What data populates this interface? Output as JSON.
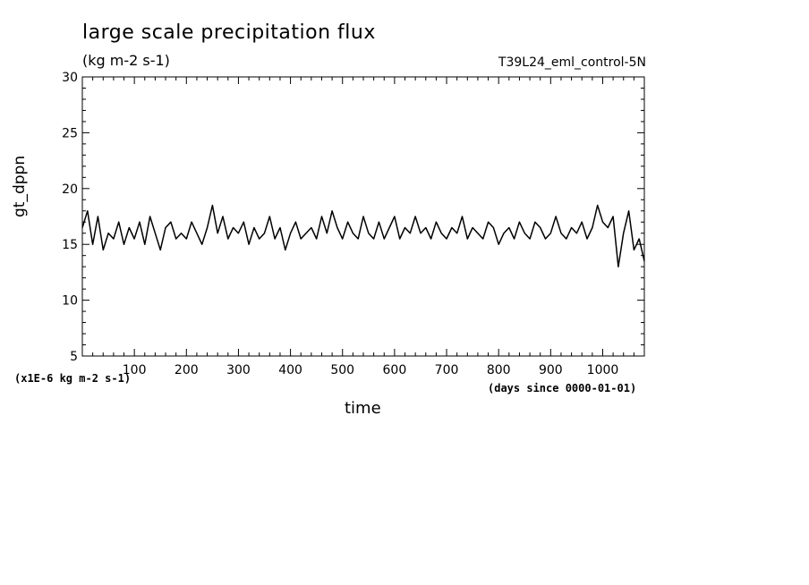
{
  "title": "large scale precipitation flux",
  "units_label": "(kg m-2 s-1)",
  "run_name": "T39L24_eml_control-5N",
  "scale_note": "(x1E-6 kg m-2 s-1)",
  "time_units": "(days since 0000-01-01)",
  "chart_data": {
    "type": "line",
    "title": "large scale precipitation flux",
    "xlabel": "time",
    "ylabel": "gt_dppn",
    "xlim": [
      0,
      1080
    ],
    "ylim": [
      5,
      30
    ],
    "x_ticks": [
      100,
      200,
      300,
      400,
      500,
      600,
      700,
      800,
      900,
      1000
    ],
    "y_ticks": [
      5,
      10,
      15,
      20,
      25,
      30
    ],
    "grid": false,
    "line_color": "#000000",
    "series": [
      {
        "x": [
          0,
          10,
          20,
          30,
          40,
          50,
          60,
          70,
          80,
          90,
          100,
          110,
          120,
          130,
          140,
          150,
          160,
          170,
          180,
          190,
          200,
          210,
          220,
          230,
          240,
          250,
          260,
          270,
          280,
          290,
          300,
          310,
          320,
          330,
          340,
          350,
          360,
          370,
          380,
          390,
          400,
          410,
          420,
          430,
          440,
          450,
          460,
          470,
          480,
          490,
          500,
          510,
          520,
          530,
          540,
          550,
          560,
          570,
          580,
          590,
          600,
          610,
          620,
          630,
          640,
          650,
          660,
          670,
          680,
          690,
          700,
          710,
          720,
          730,
          740,
          750,
          760,
          770,
          780,
          790,
          800,
          810,
          820,
          830,
          840,
          850,
          860,
          870,
          880,
          890,
          900,
          910,
          920,
          930,
          940,
          950,
          960,
          970,
          980,
          990,
          1000,
          1010,
          1020,
          1030,
          1040,
          1050,
          1060,
          1070,
          1080
        ],
        "values": [
          16.5,
          18.0,
          15.0,
          17.5,
          14.5,
          16.0,
          15.5,
          17.0,
          15.0,
          16.5,
          15.5,
          17.0,
          15.0,
          17.5,
          16.0,
          14.5,
          16.5,
          17.0,
          15.5,
          16.0,
          15.5,
          17.0,
          16.0,
          15.0,
          16.5,
          18.5,
          16.0,
          17.5,
          15.5,
          16.5,
          16.0,
          17.0,
          15.0,
          16.5,
          15.5,
          16.0,
          17.5,
          15.5,
          16.5,
          14.5,
          16.0,
          17.0,
          15.5,
          16.0,
          16.5,
          15.5,
          17.5,
          16.0,
          18.0,
          16.5,
          15.5,
          17.0,
          16.0,
          15.5,
          17.5,
          16.0,
          15.5,
          17.0,
          15.5,
          16.5,
          17.5,
          15.5,
          16.5,
          16.0,
          17.5,
          16.0,
          16.5,
          15.5,
          17.0,
          16.0,
          15.5,
          16.5,
          16.0,
          17.5,
          15.5,
          16.5,
          16.0,
          15.5,
          17.0,
          16.5,
          15.0,
          16.0,
          16.5,
          15.5,
          17.0,
          16.0,
          15.5,
          17.0,
          16.5,
          15.5,
          16.0,
          17.5,
          16.0,
          15.5,
          16.5,
          16.0,
          17.0,
          15.5,
          16.5,
          18.5,
          17.0,
          16.5,
          17.5,
          13.0,
          16.0,
          18.0,
          14.5,
          15.5,
          13.5
        ]
      }
    ]
  }
}
